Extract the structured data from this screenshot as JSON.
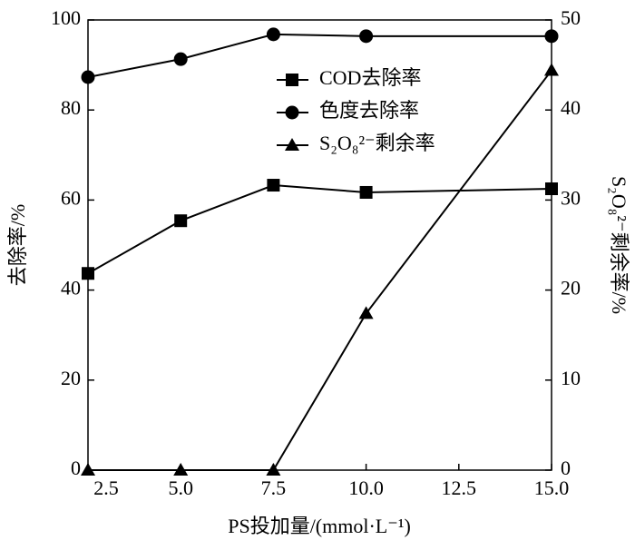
{
  "chart_data": {
    "type": "line",
    "x": [
      2.5,
      5,
      7.5,
      10,
      15
    ],
    "xlim": [
      2.5,
      15
    ],
    "xticks": [
      2.5,
      {
        "value": 5,
        "label": "5.0"
      },
      7.5,
      {
        "value": 10,
        "label": "10.0"
      },
      12.5,
      {
        "value": 15,
        "label": "15.0"
      }
    ],
    "ylim": [
      0,
      100
    ],
    "yticks": [
      0,
      20,
      40,
      60,
      80,
      100
    ],
    "y2lim": [
      0,
      50
    ],
    "y2ticks": [
      0,
      10,
      20,
      30,
      40,
      50
    ],
    "xlabel": "PS投加量/(mmol·L⁻¹)",
    "ylabel": "去除率/%",
    "y2label": "S₂O₈²⁻剩余率/%",
    "series": [
      {
        "name": "COD去除率",
        "color": "#000000",
        "marker": "square",
        "values": [
          43.7,
          55.4,
          63.3,
          61.7,
          62.5
        ]
      },
      {
        "name": "色度去除率",
        "color": "#000000",
        "marker": "circle",
        "values": [
          87.3,
          91.3,
          96.8,
          96.4,
          96.4
        ]
      },
      {
        "name": "S₂O₈²⁻剩余率",
        "color": "#000000",
        "marker": "triangle",
        "axis": "y2",
        "values": [
          0,
          0,
          0,
          17.4,
          44.4
        ]
      }
    ]
  }
}
